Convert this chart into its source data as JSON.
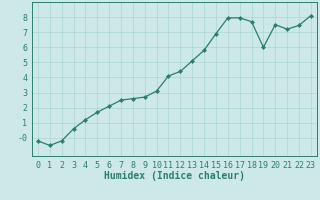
{
  "x": [
    0,
    1,
    2,
    3,
    4,
    5,
    6,
    7,
    8,
    9,
    10,
    11,
    12,
    13,
    14,
    15,
    16,
    17,
    18,
    19,
    20,
    21,
    22,
    23
  ],
  "y": [
    -0.2,
    -0.5,
    -0.2,
    0.6,
    1.2,
    1.7,
    2.1,
    2.5,
    2.6,
    2.7,
    3.1,
    4.1,
    4.4,
    5.1,
    5.8,
    6.9,
    7.95,
    7.95,
    7.7,
    6.0,
    7.5,
    7.2,
    7.45,
    8.1
  ],
  "line_color": "#2e7d6e",
  "marker": "D",
  "markersize": 2.0,
  "linewidth": 0.9,
  "bg_color": "#cce8e8",
  "grid_color": "#aad4d4",
  "xlabel": "Humidex (Indice chaleur)",
  "xlabel_fontsize": 7,
  "tick_fontsize": 6,
  "xlim": [
    -0.5,
    23.5
  ],
  "ylim": [
    -1.2,
    9.0
  ],
  "yticks": [
    0,
    1,
    2,
    3,
    4,
    5,
    6,
    7,
    8
  ],
  "ytick_labels": [
    "-0",
    "1",
    "2",
    "3",
    "4",
    "5",
    "6",
    "7",
    "8"
  ],
  "xticks": [
    0,
    1,
    2,
    3,
    4,
    5,
    6,
    7,
    8,
    9,
    10,
    11,
    12,
    13,
    14,
    15,
    16,
    17,
    18,
    19,
    20,
    21,
    22,
    23
  ]
}
